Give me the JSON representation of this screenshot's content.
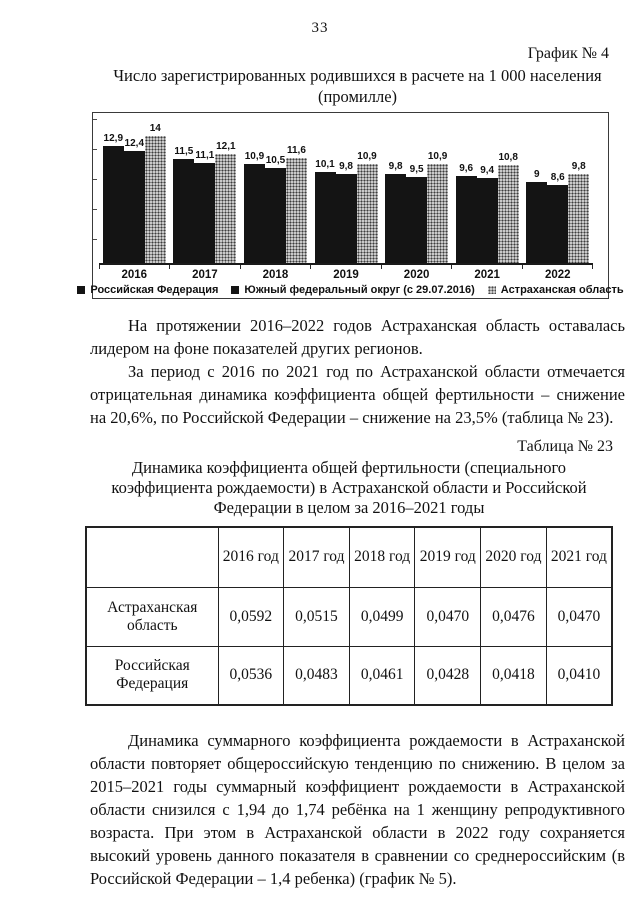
{
  "page": {
    "number": "33"
  },
  "chart_section": {
    "label": "График № 4",
    "title": "Число зарегистрированных родившихся в расчете на 1 000 населения (промилле)"
  },
  "chart_data": {
    "type": "bar",
    "title": "Число зарегистрированных родившихся в расчете на 1 000 населения (промилле)",
    "categories": [
      "2016",
      "2017",
      "2018",
      "2019",
      "2020",
      "2021",
      "2022"
    ],
    "series": [
      {
        "name": "Российская Федерация",
        "pattern": "solid",
        "values": [
          12.9,
          11.5,
          10.9,
          10.1,
          9.8,
          9.6,
          9.0
        ],
        "labels": [
          "12,9",
          "11,5",
          "10,9",
          "10,1",
          "9,8",
          "9,6",
          "9"
        ]
      },
      {
        "name": "Южный федеральный округ (с 29.07.2016)",
        "pattern": "solid",
        "values": [
          12.4,
          11.1,
          10.5,
          9.8,
          9.5,
          9.4,
          8.6
        ],
        "labels": [
          "12,4",
          "11,1",
          "10,5",
          "9,8",
          "9,5",
          "9,4",
          "8,6"
        ]
      },
      {
        "name": "Астраханская область",
        "pattern": "speckled",
        "values": [
          14.0,
          12.1,
          11.6,
          10.9,
          10.9,
          10.8,
          9.8
        ],
        "labels": [
          "14",
          "12,1",
          "11,6",
          "10,9",
          "10,9",
          "10,8",
          "9,8"
        ]
      }
    ],
    "ylim": [
      0,
      16.5
    ],
    "grid": false,
    "legend_position": "bottom",
    "colors": {
      "solid": "#141414",
      "speckled": "#c9c9c9"
    }
  },
  "paragraphs": {
    "p1": "На протяжении 2016–2022 годов Астраханская область оставалась лидером на фоне показателей других регионов.",
    "p2": "За период с 2016 по 2021 год по Астраханской области отмечается отрицательная динамика коэффициента общей фертильности – снижение на 20,6%, по Российской Федерации – снижение на 23,5% (таблица № 23).",
    "p3": "Динамика суммарного коэффициента рождаемости в Астраханской области повторяет общероссийскую тенденцию по снижению. В целом за 2015–2021 годы суммарный коэффициент рождаемости в Астраханской области снизился с 1,94 до 1,74 ребёнка на 1 женщину репродуктивного возраста. При этом в Астраханской области в 2022 году сохраняется высокий уровень данного показателя в сравнении со среднероссийским (в Российской Федерации – 1,4 ребенка) (график № 5)."
  },
  "table_section": {
    "label": "Таблица № 23",
    "title": "Динамика коэффициента общей фертильности (специального коэффициента рождаемости) в Астраханской области и Российской Федерации в целом за 2016–2021 годы",
    "columns": [
      "",
      "2016 год",
      "2017 год",
      "2018 год",
      "2019 год",
      "2020 год",
      "2021 год"
    ],
    "rows": [
      {
        "label": "Астраханская область",
        "values": [
          "0,0592",
          "0,0515",
          "0,0499",
          "0,0470",
          "0,0476",
          "0,0470"
        ]
      },
      {
        "label": "Российская Федерация",
        "values": [
          "0,0536",
          "0,0483",
          "0,0461",
          "0,0428",
          "0,0418",
          "0,0410"
        ]
      }
    ]
  }
}
